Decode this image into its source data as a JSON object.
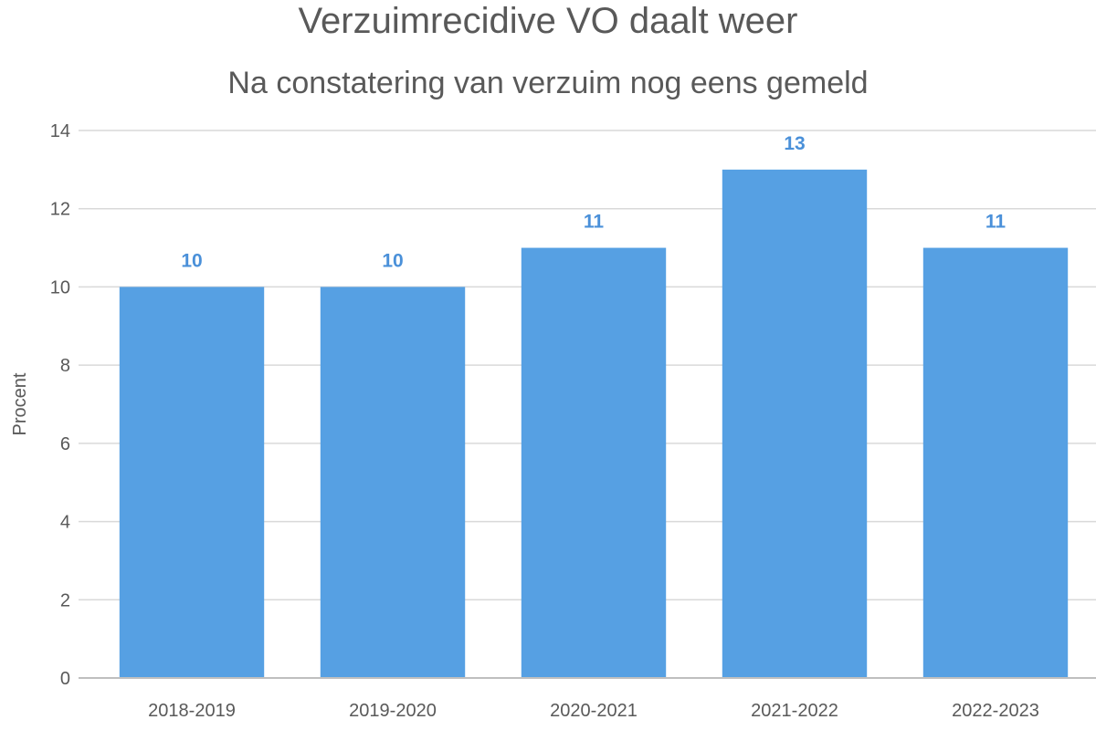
{
  "chart_data": {
    "type": "bar",
    "title": "Verzuimrecidive VO daalt weer",
    "subtitle": "Na constatering van verzuim nog eens gemeld",
    "xlabel": "",
    "ylabel": "Procent",
    "categories": [
      "2018-2019",
      "2019-2020",
      "2020-2021",
      "2021-2022",
      "2022-2023"
    ],
    "values": [
      10,
      10,
      11,
      13,
      11
    ],
    "ylim": [
      0,
      14
    ],
    "yticks": [
      0,
      2,
      4,
      6,
      8,
      10,
      12,
      14
    ],
    "grid": true,
    "legend": "none",
    "colors": {
      "bar": "#56a0e3",
      "data_label": "#4a90d9",
      "grid": "#d9d9d9",
      "axis": "#bfbfbf",
      "text": "#595959"
    }
  }
}
